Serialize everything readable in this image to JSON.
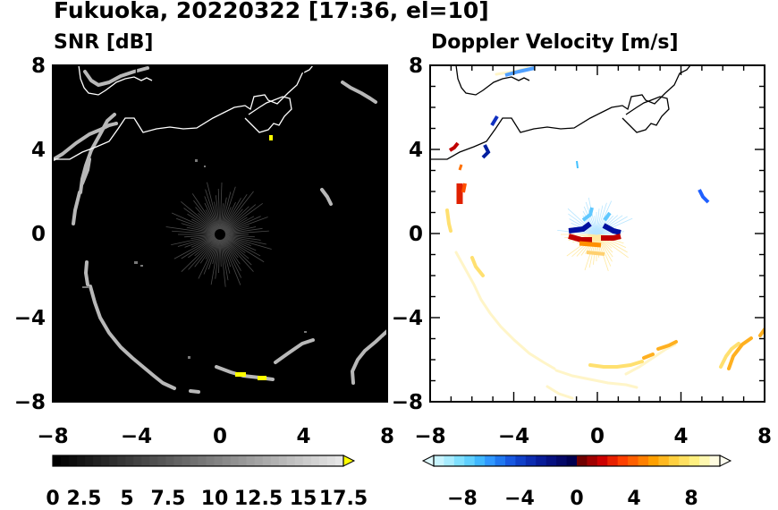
{
  "figure": {
    "title": "Fukuoka, 20220322 [17:36, el=10]"
  },
  "chart_data": [
    {
      "type": "heatmap",
      "title": "SNR [dB]",
      "xlim": [
        -8,
        8
      ],
      "ylim": [
        -8,
        8
      ],
      "xticks": [
        "−8",
        "−4",
        "0",
        "4",
        "8"
      ],
      "yticks": [
        "8",
        "4",
        "0",
        "−4",
        "−8"
      ],
      "background": "#000000",
      "colorbar": {
        "range": [
          0,
          18.5
        ],
        "extend": "max",
        "ticks": [
          "0",
          "2.5",
          "5",
          "7.5",
          "10",
          "12.5",
          "15",
          "17.5"
        ],
        "tick_values": [
          0,
          2.5,
          5,
          7.5,
          10,
          12.5,
          15,
          17.5
        ],
        "colormap": "gray",
        "over_color": "#ffff00"
      },
      "highlights": [
        {
          "x": 1.3,
          "y": -6.8,
          "level": "over"
        },
        {
          "x": 2.2,
          "y": -6.9,
          "level": "over"
        },
        {
          "x": 2.4,
          "y": 4.6,
          "level": "over"
        }
      ]
    },
    {
      "type": "heatmap",
      "title": "Doppler Velocity [m/s]",
      "xlim": [
        -8,
        8
      ],
      "ylim": [
        -8,
        8
      ],
      "xticks": [
        "−8",
        "−4",
        "0",
        "4",
        "8"
      ],
      "yticks": [
        "8",
        "4",
        "0",
        "−4",
        "−8"
      ],
      "background": "#ffffff",
      "colorbar": {
        "range": [
          -10,
          10
        ],
        "extend": "both",
        "ticks": [
          "−8",
          "−4",
          "0",
          "4",
          "8"
        ],
        "tick_values": [
          -8,
          -4,
          0,
          4,
          8
        ],
        "colormap": "light-cyan → blue → navy | dark-red → red → orange → yellow → cream"
      }
    }
  ]
}
